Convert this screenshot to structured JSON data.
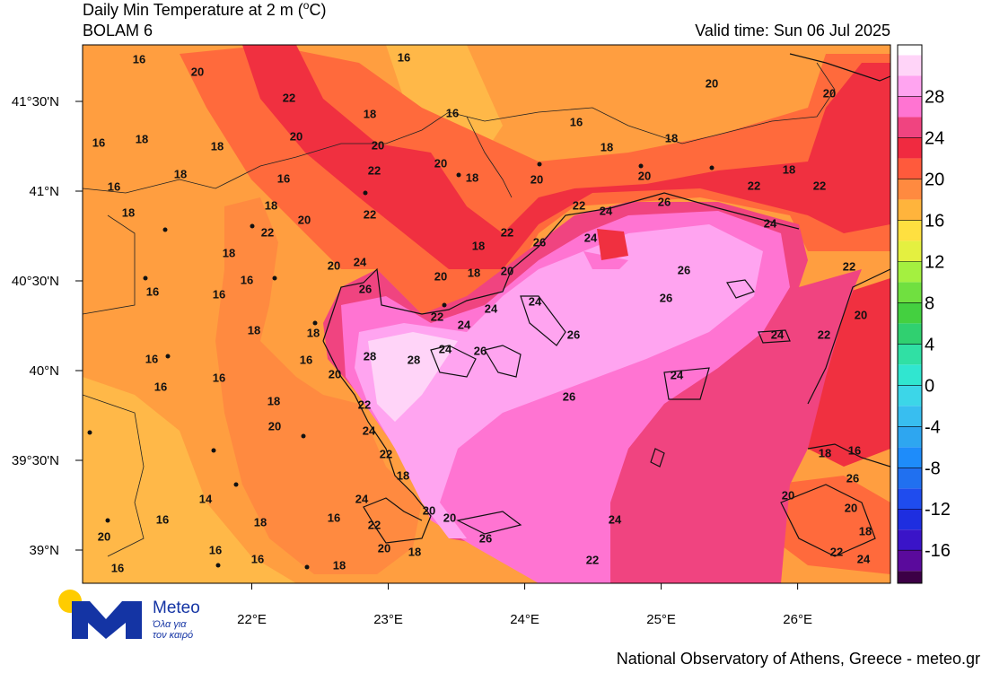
{
  "header": {
    "title_start": "Daily Min Temperature at 2 m (",
    "title_sup": "o",
    "title_end": "C)",
    "subtitle": "BOLAM 6",
    "valid_time": "Valid time: Sun 06 Jul 2025"
  },
  "map": {
    "xlim": [
      20.76,
      26.68
    ],
    "ylim": [
      38.815,
      41.815
    ],
    "lon_ticks": [
      {
        "value": 22,
        "label": "22°E"
      },
      {
        "value": 23,
        "label": "23°E"
      },
      {
        "value": 24,
        "label": "24°E"
      },
      {
        "value": 25,
        "label": "25°E"
      },
      {
        "value": 26,
        "label": "26°E"
      }
    ],
    "lat_ticks": [
      {
        "value": 41.5,
        "label": "41°30'N"
      },
      {
        "value": 41,
        "label": "41°N"
      },
      {
        "value": 40.5,
        "label": "40°30'N"
      },
      {
        "value": 40,
        "label": "40°N"
      },
      {
        "value": 39.5,
        "label": "39°30'N"
      },
      {
        "value": 39,
        "label": "39°N"
      }
    ],
    "contour_labels": [
      "16",
      "20",
      "16",
      "22",
      "18",
      "16",
      "16",
      "20",
      "20",
      "16",
      "18",
      "18",
      "20",
      "20",
      "18",
      "18",
      "18",
      "22",
      "20",
      "18",
      "20",
      "20",
      "18",
      "16",
      "16",
      "22",
      "22",
      "18",
      "18",
      "20",
      "22",
      "22",
      "24",
      "26",
      "24",
      "22",
      "22",
      "26",
      "24",
      "18",
      "18",
      "20",
      "24",
      "20",
      "18",
      "20",
      "26",
      "22",
      "16",
      "16",
      "16",
      "26",
      "24",
      "26",
      "22",
      "24",
      "24",
      "20",
      "18",
      "18",
      "26",
      "24",
      "22",
      "24",
      "26",
      "28",
      "28",
      "16",
      "16",
      "20",
      "24",
      "16",
      "16",
      "26",
      "18",
      "22",
      "20",
      "24",
      "22",
      "18",
      "18",
      "16",
      "26",
      "14",
      "24",
      "20",
      "20",
      "16",
      "16",
      "18",
      "22",
      "20",
      "24",
      "20",
      "18",
      "20",
      "26",
      "16",
      "20",
      "18",
      "22",
      "24",
      "16",
      "18",
      "16",
      "22"
    ]
  },
  "colorbar": {
    "lim": [
      -19.2,
      33
    ],
    "edges": [
      -20,
      -18,
      -16,
      -14,
      -12,
      -10,
      -8,
      -6,
      -4,
      -2,
      0,
      2,
      4,
      6,
      8,
      10,
      12,
      14,
      16,
      18,
      20,
      22,
      24,
      26,
      28,
      30,
      32,
      34
    ],
    "colors": [
      "#3c0046",
      "#5a0a9c",
      "#3a14c8",
      "#1e2ee0",
      "#1f4cee",
      "#2070f0",
      "#1e8cfa",
      "#2ea6f0",
      "#38bef0",
      "#3cd6e8",
      "#30e6d0",
      "#30e0a4",
      "#30d070",
      "#44d040",
      "#70e040",
      "#a4f040",
      "#e4f040",
      "#ffe040",
      "#ffb43c",
      "#ff8a40",
      "#ff5a3c",
      "#f02a40",
      "#f04480",
      "#ff74d2",
      "#ffa4f0",
      "#ffd4f8",
      "#ffffff"
    ],
    "ticks": [
      28,
      24,
      20,
      16,
      12,
      8,
      4,
      0,
      -4,
      -8,
      -12,
      -16
    ]
  },
  "logo": {
    "name": "Meteo",
    "line1": "Όλα για",
    "line2": "τον καιρό"
  },
  "footer": "National Observatory of Athens, Greece - meteo.gr"
}
